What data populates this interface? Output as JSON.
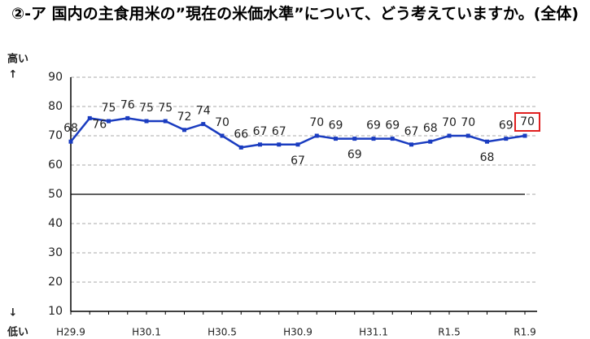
{
  "chart_data": {
    "type": "line",
    "title": "②-ア 国内の主食用米の”現在の米価水準”について、どう考えていますか。(全体)",
    "y_top_label": "高い",
    "y_top_arrow": "↑",
    "y_bottom_arrow": "↓",
    "y_bottom_label": "低い",
    "categories": [
      "H29.9",
      null,
      null,
      null,
      "H30.1",
      null,
      null,
      null,
      "H30.5",
      null,
      null,
      null,
      "H30.9",
      null,
      null,
      null,
      "H31.1",
      null,
      null,
      null,
      "R1.5",
      null,
      null,
      null,
      "R1.9"
    ],
    "series": [
      {
        "name": "米価水準",
        "color": "#1a3cc0",
        "values": [
          68,
          76,
          75,
          76,
          75,
          75,
          72,
          74,
          70,
          66,
          67,
          67,
          67,
          70,
          69,
          69,
          69,
          69,
          67,
          68,
          70,
          70,
          68,
          69,
          70
        ]
      }
    ],
    "ylim": [
      10,
      90
    ],
    "yticks": [
      10,
      20,
      30,
      40,
      50,
      60,
      70,
      80,
      90
    ],
    "grid": true,
    "reference_line": 50,
    "highlight_color": "#e02020"
  }
}
